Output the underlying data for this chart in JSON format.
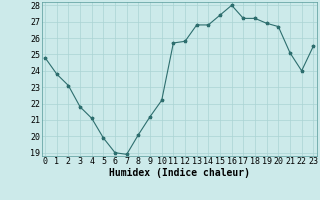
{
  "x": [
    0,
    1,
    2,
    3,
    4,
    5,
    6,
    7,
    8,
    9,
    10,
    11,
    12,
    13,
    14,
    15,
    16,
    17,
    18,
    19,
    20,
    21,
    22,
    23
  ],
  "y": [
    24.8,
    23.8,
    23.1,
    21.8,
    21.1,
    19.9,
    19.0,
    18.9,
    20.1,
    21.2,
    22.2,
    25.7,
    25.8,
    26.8,
    26.8,
    27.4,
    28.0,
    27.2,
    27.2,
    26.9,
    26.7,
    25.1,
    24.0,
    25.5
  ],
  "xlabel": "Humidex (Indice chaleur)",
  "ylim": [
    19,
    28
  ],
  "xlim": [
    -0.3,
    23.3
  ],
  "yticks": [
    19,
    20,
    21,
    22,
    23,
    24,
    25,
    26,
    27,
    28
  ],
  "xticks": [
    0,
    1,
    2,
    3,
    4,
    5,
    6,
    7,
    8,
    9,
    10,
    11,
    12,
    13,
    14,
    15,
    16,
    17,
    18,
    19,
    20,
    21,
    22,
    23
  ],
  "line_color": "#2d6e6e",
  "marker": "*",
  "marker_size": 2.5,
  "bg_color": "#cceaea",
  "grid_color": "#aad4d4",
  "xlabel_fontsize": 7,
  "tick_fontsize": 6
}
